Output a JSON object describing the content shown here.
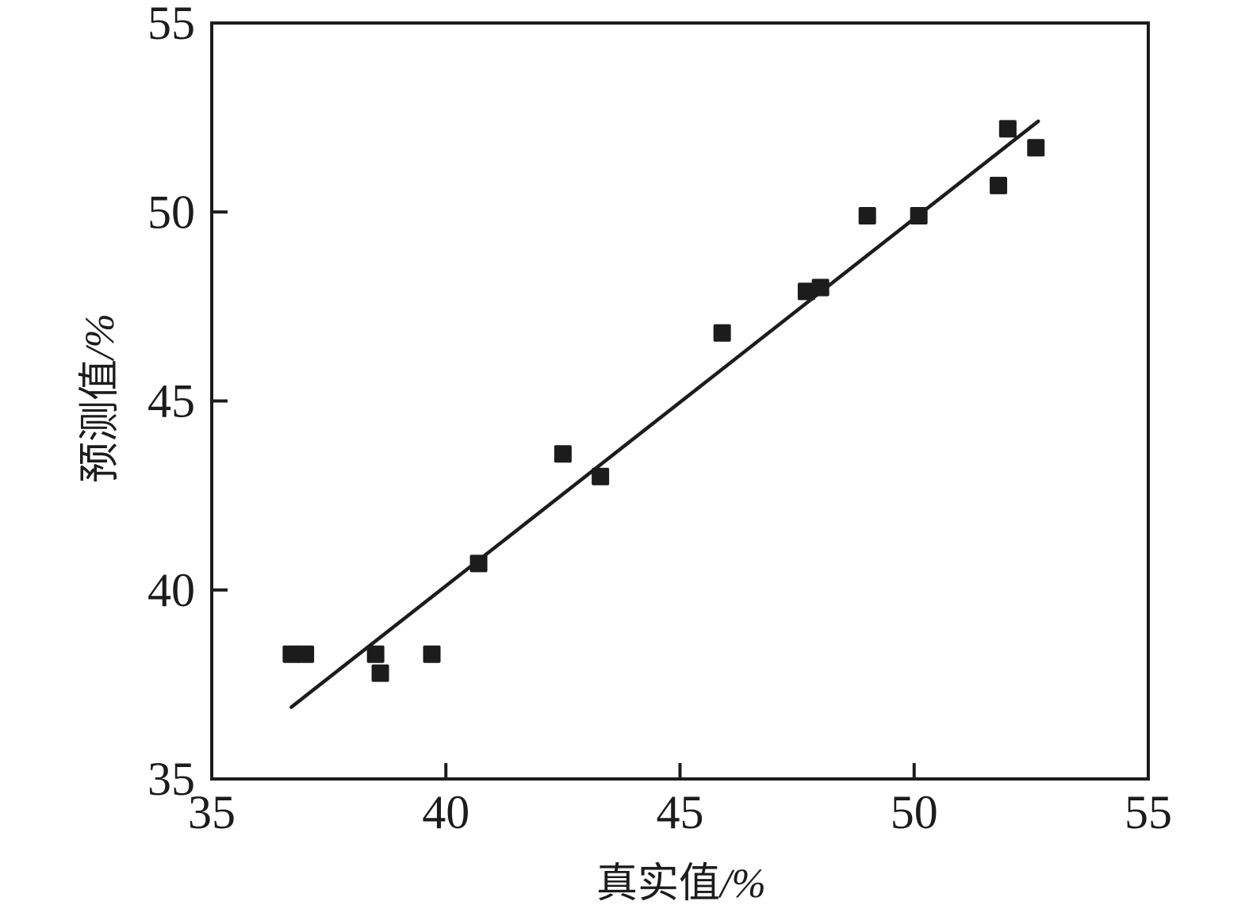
{
  "figure": {
    "background": "#ffffff",
    "ink_color": "#1c1c1c"
  },
  "chart_data": {
    "type": "scatter",
    "title": "",
    "xlabel": "真实值",
    "xlabel_unit": "/%",
    "ylabel": "预测值",
    "ylabel_unit": "/%",
    "xlim": [
      35,
      55
    ],
    "ylim": [
      35,
      55
    ],
    "x_ticks": [
      35,
      40,
      45,
      50,
      55
    ],
    "y_ticks": [
      35,
      40,
      45,
      50,
      55
    ],
    "x_tick_marks": [
      40,
      45,
      50
    ],
    "y_tick_marks": [
      40,
      45,
      50
    ],
    "grid": false,
    "legend": "none",
    "marker": "filled-square",
    "marker_color": "#1c1c1c",
    "line_color": "#1c1c1c",
    "points": [
      [
        36.7,
        38.3
      ],
      [
        37.0,
        38.3
      ],
      [
        38.5,
        38.3
      ],
      [
        38.6,
        37.8
      ],
      [
        39.7,
        38.3
      ],
      [
        40.7,
        40.7
      ],
      [
        42.5,
        43.6
      ],
      [
        43.3,
        43.0
      ],
      [
        45.9,
        46.8
      ],
      [
        47.7,
        47.9
      ],
      [
        48.0,
        48.0
      ],
      [
        49.0,
        49.9
      ],
      [
        50.1,
        49.9
      ],
      [
        51.8,
        50.7
      ],
      [
        52.0,
        52.2
      ],
      [
        52.6,
        51.7
      ]
    ],
    "fit_line": {
      "x1": 36.7,
      "y1": 36.9,
      "x2": 52.65,
      "y2": 52.4
    }
  }
}
